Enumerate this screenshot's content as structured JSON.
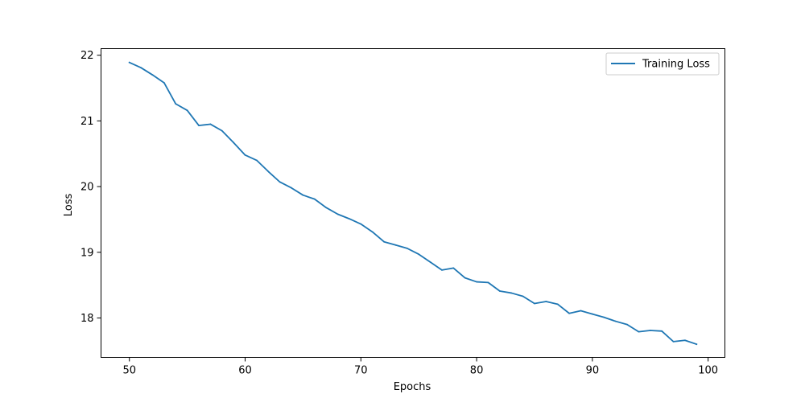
{
  "chart_data": {
    "type": "line",
    "title": "",
    "xlabel": "Epochs",
    "ylabel": "Loss",
    "xlim": [
      47.55,
      101.45
    ],
    "ylim": [
      17.4,
      22.1
    ],
    "xticks": [
      50,
      60,
      70,
      80,
      90,
      100
    ],
    "yticks": [
      18,
      19,
      20,
      21,
      22
    ],
    "grid": false,
    "legend_position": "top-right",
    "series": [
      {
        "name": "Training Loss",
        "color": "#1f77b4",
        "x": [
          50,
          51,
          52,
          53,
          54,
          55,
          56,
          57,
          58,
          59,
          60,
          61,
          62,
          63,
          64,
          65,
          66,
          67,
          68,
          69,
          70,
          71,
          72,
          73,
          74,
          75,
          76,
          77,
          78,
          79,
          80,
          81,
          82,
          83,
          84,
          85,
          86,
          87,
          88,
          89,
          90,
          91,
          92,
          93,
          94,
          95,
          96,
          97,
          98,
          99
        ],
        "y": [
          21.89,
          21.81,
          21.7,
          21.58,
          21.26,
          21.16,
          20.93,
          20.95,
          20.85,
          20.67,
          20.48,
          20.4,
          20.23,
          20.07,
          19.98,
          19.87,
          19.81,
          19.68,
          19.58,
          19.51,
          19.43,
          19.31,
          19.16,
          19.11,
          19.06,
          18.97,
          18.85,
          18.73,
          18.76,
          18.61,
          18.55,
          18.54,
          18.41,
          18.38,
          18.33,
          18.22,
          18.25,
          18.21,
          18.07,
          18.11,
          18.06,
          18.01,
          17.95,
          17.9,
          17.79,
          17.81,
          17.8,
          17.64,
          17.66,
          17.6
        ]
      }
    ]
  }
}
